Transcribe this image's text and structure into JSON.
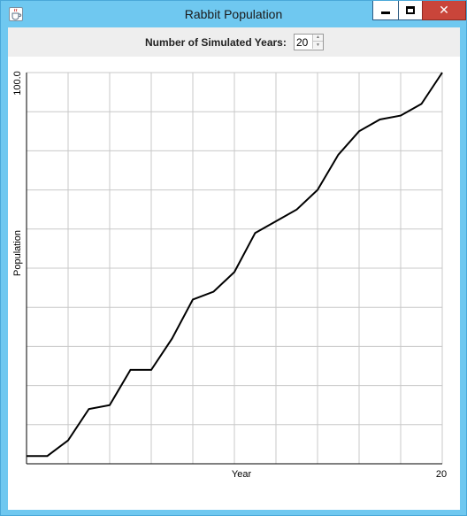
{
  "window": {
    "title": "Rabbit Population",
    "icon": "java-cup-icon",
    "buttons": {
      "minimize": "minimize-icon",
      "maximize": "maximize-icon",
      "close": "close-icon"
    }
  },
  "controls": {
    "years_label": "Number of Simulated Years:",
    "years_value": "20"
  },
  "chart_data": {
    "type": "line",
    "title": "",
    "xlabel": "Year",
    "ylabel": "Population",
    "xlim": [
      0,
      20
    ],
    "ylim": [
      0,
      100
    ],
    "x_tick_labels": [
      "20"
    ],
    "y_tick_labels": [
      "100.0"
    ],
    "grid": true,
    "legend": "none",
    "line_color": "#000000",
    "grid_color": "#c8c8c8",
    "x": [
      0,
      1,
      2,
      3,
      4,
      5,
      6,
      7,
      8,
      9,
      10,
      11,
      12,
      13,
      14,
      15,
      16,
      17,
      18,
      19,
      20
    ],
    "values": [
      2,
      2,
      6,
      14,
      15,
      24,
      24,
      32,
      42,
      44,
      49,
      59,
      62,
      65,
      70,
      79,
      85,
      88,
      89,
      92,
      100
    ]
  }
}
